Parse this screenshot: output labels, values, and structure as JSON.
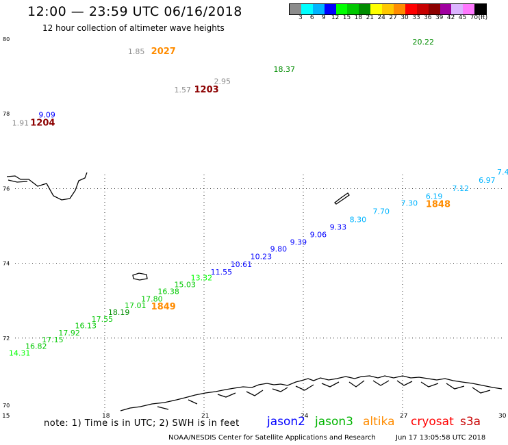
{
  "title": "12:00 — 23:59 UTC 06/16/2018",
  "subtitle": "12 hour collection of altimeter wave heights",
  "colorbar": {
    "colors": [
      "#8c8c8c",
      "#00ffff",
      "#00b4ff",
      "#0000ff",
      "#00ff00",
      "#00c800",
      "#008c00",
      "#ffff00",
      "#ffc800",
      "#ff8c00",
      "#ff0000",
      "#c80000",
      "#8c0000",
      "#a000a0",
      "#dcb4ff",
      "#ff78ff",
      "#000000"
    ],
    "labels": [
      "3",
      "6",
      "9",
      "12",
      "15",
      "18",
      "21",
      "24",
      "27",
      "30",
      "33",
      "36",
      "39",
      "42",
      "45",
      "70",
      "(ft)"
    ]
  },
  "map": {
    "lon_ticks": [
      "15",
      "18",
      "21",
      "24",
      "27",
      "30"
    ],
    "lat_ticks": [
      "80",
      "78",
      "76",
      "74",
      "72",
      "70"
    ]
  },
  "observations": [
    {
      "text": "20.22",
      "lon": 27.3,
      "lat": 79.85,
      "color": "#008c00"
    },
    {
      "text": "1.85",
      "lon": 18.7,
      "lat": 79.6,
      "color": "#8c8c8c"
    },
    {
      "text": "2027",
      "lon": 19.4,
      "lat": 79.6,
      "color": "#ff8c00",
      "bold": true
    },
    {
      "text": "18.37",
      "lon": 23.1,
      "lat": 79.12,
      "color": "#008c00"
    },
    {
      "text": "2.95",
      "lon": 21.3,
      "lat": 78.8,
      "color": "#8c8c8c"
    },
    {
      "text": "1.57",
      "lon": 20.1,
      "lat": 78.57,
      "color": "#8c8c8c"
    },
    {
      "text": "1203",
      "lon": 20.7,
      "lat": 78.57,
      "color": "#8c0000",
      "bold": true
    },
    {
      "text": "9.09",
      "lon": 16.0,
      "lat": 77.9,
      "color": "#0000ff"
    },
    {
      "text": "1.91",
      "lon": 15.2,
      "lat": 77.68,
      "color": "#8c8c8c"
    },
    {
      "text": "1204",
      "lon": 15.75,
      "lat": 77.68,
      "color": "#8c0000",
      "bold": true
    },
    {
      "text": "7.4",
      "lon": 30.0,
      "lat": 76.37,
      "color": "#00b4ff"
    },
    {
      "text": "6.97",
      "lon": 29.3,
      "lat": 76.15,
      "color": "#00b4ff"
    },
    {
      "text": "7.12",
      "lon": 28.5,
      "lat": 75.93,
      "color": "#00b4ff"
    },
    {
      "text": "6.19",
      "lon": 27.7,
      "lat": 75.72,
      "color": "#00b4ff"
    },
    {
      "text": "1848",
      "lon": 27.7,
      "lat": 75.5,
      "color": "#ff8c00",
      "bold": true
    },
    {
      "text": "7.30",
      "lon": 26.95,
      "lat": 75.54,
      "color": "#00b4ff"
    },
    {
      "text": "7.70",
      "lon": 26.1,
      "lat": 75.32,
      "color": "#00b4ff"
    },
    {
      "text": "8.30",
      "lon": 25.4,
      "lat": 75.1,
      "color": "#00b4ff"
    },
    {
      "text": "9.33",
      "lon": 24.8,
      "lat": 74.9,
      "color": "#0000ff"
    },
    {
      "text": "9.06",
      "lon": 24.2,
      "lat": 74.7,
      "color": "#0000ff"
    },
    {
      "text": "9.39",
      "lon": 23.6,
      "lat": 74.5,
      "color": "#0000ff"
    },
    {
      "text": "9.80",
      "lon": 23.0,
      "lat": 74.31,
      "color": "#0000ff"
    },
    {
      "text": "10.23",
      "lon": 22.4,
      "lat": 74.11,
      "color": "#0000ff"
    },
    {
      "text": "10.61",
      "lon": 21.8,
      "lat": 73.9,
      "color": "#0000ff"
    },
    {
      "text": "11.55",
      "lon": 21.2,
      "lat": 73.7,
      "color": "#0000ff"
    },
    {
      "text": "13.32",
      "lon": 20.6,
      "lat": 73.54,
      "color": "#00ff00"
    },
    {
      "text": "15.03",
      "lon": 20.1,
      "lat": 73.36,
      "color": "#00c800"
    },
    {
      "text": "16.38",
      "lon": 19.6,
      "lat": 73.18,
      "color": "#00c800"
    },
    {
      "text": "17.80",
      "lon": 19.1,
      "lat": 72.98,
      "color": "#00c800"
    },
    {
      "text": "1849",
      "lon": 19.4,
      "lat": 72.77,
      "color": "#ff8c00",
      "bold": true
    },
    {
      "text": "17.01",
      "lon": 18.6,
      "lat": 72.8,
      "color": "#00c800"
    },
    {
      "text": "18.19",
      "lon": 18.1,
      "lat": 72.62,
      "color": "#008c00"
    },
    {
      "text": "17.55",
      "lon": 17.6,
      "lat": 72.44,
      "color": "#00c800"
    },
    {
      "text": "16.13",
      "lon": 17.1,
      "lat": 72.26,
      "color": "#00c800"
    },
    {
      "text": "17.92",
      "lon": 16.6,
      "lat": 72.07,
      "color": "#00c800"
    },
    {
      "text": "17.15",
      "lon": 16.1,
      "lat": 71.89,
      "color": "#00c800"
    },
    {
      "text": "16.82",
      "lon": 15.6,
      "lat": 71.71,
      "color": "#00c800"
    },
    {
      "text": "14.31",
      "lon": 15.1,
      "lat": 71.53,
      "color": "#00ff00"
    }
  ],
  "footer": {
    "note": "note: 1) Time is in UTC; 2) SWH is in feet",
    "legend": [
      {
        "name": "jason2",
        "color": "#0000ff"
      },
      {
        "name": "jason3",
        "color": "#00b400"
      },
      {
        "name": "altika",
        "color": "#ff8c00"
      },
      {
        "name": "cryosat",
        "color": "#ff0000"
      },
      {
        "name": "s3a",
        "color": "#c80000"
      }
    ],
    "credit": "NOAA/NESDIS Center for Satellite Applications and Research",
    "timestamp": "Jun 17 13:05:58 UTC 2018"
  }
}
